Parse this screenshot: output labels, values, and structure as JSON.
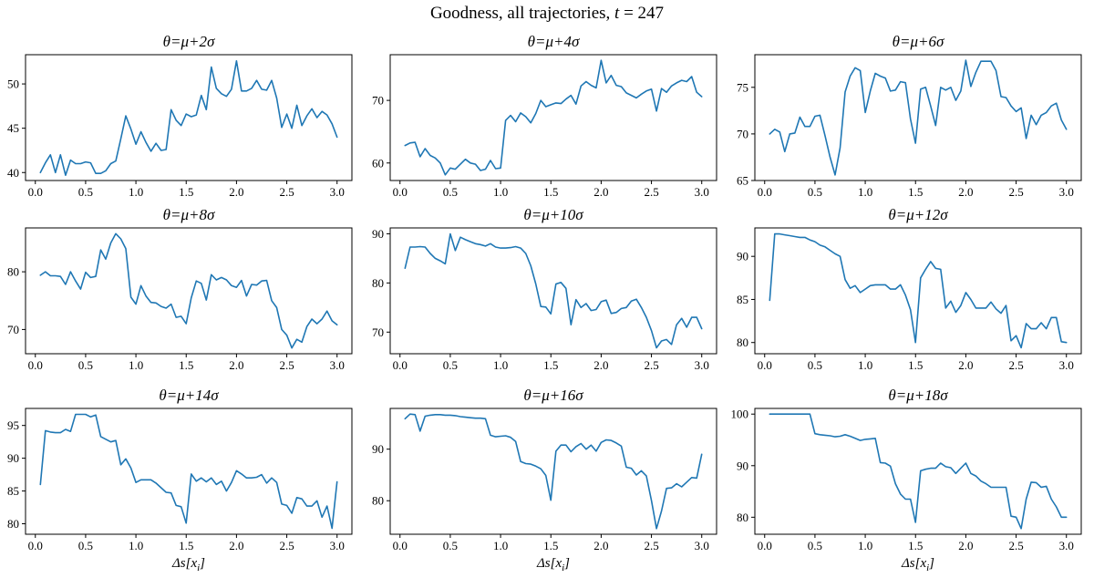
{
  "figure": {
    "title_prefix": "Goodness, all trajectories, ",
    "title_var": "t",
    "title_suffix": " = 247",
    "xlabel_pre": "Δs[x",
    "xlabel_sub": "i",
    "xlabel_post": "]",
    "line_color": "#1f77b4",
    "background": "#ffffff"
  },
  "axes": {
    "x": [
      0.05,
      0.1,
      0.15,
      0.2,
      0.25,
      0.3,
      0.35,
      0.4,
      0.45,
      0.5,
      0.55,
      0.6,
      0.65,
      0.7,
      0.75,
      0.8,
      0.85,
      0.9,
      0.95,
      1.0,
      1.05,
      1.1,
      1.15,
      1.2,
      1.25,
      1.3,
      1.35,
      1.4,
      1.45,
      1.5,
      1.55,
      1.6,
      1.65,
      1.7,
      1.75,
      1.8,
      1.85,
      1.9,
      1.95,
      2.0,
      2.05,
      2.1,
      2.15,
      2.2,
      2.25,
      2.3,
      2.35,
      2.4,
      2.45,
      2.5,
      2.55,
      2.6,
      2.65,
      2.7,
      2.75,
      2.8,
      2.85,
      2.9,
      2.95,
      3.0
    ],
    "xticks": [
      0.0,
      0.5,
      1.0,
      1.5,
      2.0,
      2.5,
      3.0
    ],
    "xlim": [
      -0.0975,
      3.1475
    ],
    "grid": false
  },
  "chart_data": [
    {
      "type": "line",
      "title": "θ=μ+2σ",
      "yticks": [
        40,
        45,
        50
      ],
      "ylim": [
        39.1,
        53.3
      ],
      "y": [
        40.0,
        41.1,
        42.0,
        40.0,
        42.0,
        39.7,
        41.4,
        41.0,
        41.0,
        41.2,
        41.1,
        39.9,
        39.9,
        40.2,
        41.0,
        41.3,
        43.8,
        46.4,
        44.9,
        43.2,
        44.6,
        43.4,
        42.4,
        43.3,
        42.5,
        42.6,
        47.1,
        45.9,
        45.3,
        46.6,
        46.3,
        46.5,
        48.7,
        47.1,
        51.9,
        49.5,
        48.9,
        48.6,
        49.4,
        52.6,
        49.2,
        49.2,
        49.5,
        50.4,
        49.4,
        49.3,
        50.4,
        48.4,
        45.1,
        46.6,
        45.0,
        47.6,
        45.3,
        46.4,
        47.2,
        46.2,
        46.9,
        46.5,
        45.5,
        44.0
      ]
    },
    {
      "type": "line",
      "title": "θ=μ+4σ",
      "yticks": [
        60,
        70
      ],
      "ylim": [
        57.2,
        77.3
      ],
      "y": [
        62.8,
        63.2,
        63.3,
        61.0,
        62.3,
        61.2,
        60.8,
        60.0,
        58.1,
        59.2,
        59.0,
        59.8,
        60.6,
        60.0,
        59.8,
        58.8,
        59.0,
        60.4,
        59.1,
        59.2,
        66.8,
        67.6,
        66.6,
        68.0,
        67.4,
        66.4,
        67.9,
        70.0,
        69.0,
        69.3,
        69.6,
        69.5,
        70.2,
        70.8,
        69.4,
        72.3,
        73.0,
        72.4,
        72.0,
        76.4,
        72.8,
        74.0,
        72.4,
        72.2,
        71.2,
        70.8,
        70.4,
        71.0,
        71.5,
        71.8,
        68.3,
        71.9,
        71.3,
        72.3,
        72.8,
        73.2,
        73.0,
        73.8,
        71.3,
        70.6
      ]
    },
    {
      "type": "line",
      "title": "θ=μ+6σ",
      "yticks": [
        65,
        70,
        75
      ],
      "ylim": [
        65.0,
        78.5
      ],
      "y": [
        70.0,
        70.5,
        70.2,
        68.1,
        70.0,
        70.1,
        71.8,
        70.8,
        70.8,
        71.9,
        72.0,
        69.8,
        67.5,
        65.6,
        68.5,
        74.5,
        76.2,
        77.1,
        76.8,
        72.3,
        74.6,
        76.5,
        76.2,
        76.0,
        74.6,
        74.7,
        75.6,
        75.5,
        71.6,
        69.0,
        74.8,
        75.0,
        73.0,
        70.9,
        75.0,
        74.7,
        75.0,
        73.6,
        74.6,
        77.9,
        75.1,
        76.6,
        77.8,
        77.8,
        77.8,
        76.8,
        74.0,
        73.9,
        73.0,
        72.4,
        72.8,
        69.5,
        72.0,
        71.0,
        72.0,
        72.3,
        73.0,
        73.3,
        71.5,
        70.5
      ]
    },
    {
      "type": "line",
      "title": "θ=μ+8σ",
      "yticks": [
        70,
        80
      ],
      "ylim": [
        65.8,
        87.6
      ],
      "y": [
        79.4,
        80.0,
        79.3,
        79.3,
        79.2,
        77.8,
        80.0,
        78.4,
        77.0,
        79.9,
        79.0,
        79.2,
        83.8,
        82.2,
        85.0,
        86.6,
        85.7,
        84.0,
        75.6,
        74.4,
        77.6,
        75.8,
        74.7,
        74.6,
        74.0,
        73.7,
        74.4,
        72.1,
        72.3,
        71.0,
        75.5,
        78.4,
        78.0,
        75.1,
        79.5,
        78.6,
        79.0,
        78.6,
        77.6,
        77.3,
        78.5,
        75.8,
        77.8,
        77.7,
        78.4,
        78.5,
        75.0,
        73.8,
        70.0,
        69.0,
        66.8,
        68.3,
        67.8,
        70.5,
        71.8,
        71.0,
        71.8,
        73.2,
        71.5,
        70.8
      ]
    },
    {
      "type": "line",
      "title": "θ=μ+10σ",
      "yticks": [
        70,
        80,
        90
      ],
      "ylim": [
        65.6,
        91.2
      ],
      "y": [
        83.0,
        87.3,
        87.3,
        87.4,
        87.3,
        86.0,
        85.0,
        84.5,
        83.9,
        90.0,
        86.6,
        89.3,
        88.8,
        88.4,
        88.0,
        87.8,
        87.5,
        88.0,
        87.3,
        87.1,
        87.1,
        87.2,
        87.4,
        87.1,
        86.0,
        83.5,
        79.8,
        75.2,
        75.1,
        73.7,
        79.8,
        80.1,
        78.9,
        71.5,
        76.6,
        75.0,
        75.8,
        74.4,
        74.6,
        76.2,
        76.5,
        73.8,
        74.0,
        74.8,
        75.0,
        76.3,
        76.7,
        75.0,
        73.0,
        70.3,
        66.8,
        68.2,
        68.5,
        67.5,
        71.5,
        72.8,
        71.0,
        73.0,
        73.0,
        70.7
      ]
    },
    {
      "type": "line",
      "title": "θ=μ+12σ",
      "yticks": [
        80,
        85,
        90
      ],
      "ylim": [
        78.7,
        93.3
      ],
      "y": [
        84.9,
        92.6,
        92.6,
        92.5,
        92.4,
        92.3,
        92.2,
        92.2,
        91.9,
        91.7,
        91.3,
        91.1,
        90.7,
        90.3,
        90.0,
        87.3,
        86.3,
        86.6,
        85.8,
        86.2,
        86.6,
        86.7,
        86.7,
        86.7,
        86.2,
        86.2,
        86.7,
        85.5,
        83.8,
        80.0,
        87.5,
        88.5,
        89.4,
        88.6,
        88.5,
        84.0,
        84.8,
        83.5,
        84.3,
        85.8,
        85.0,
        84.0,
        84.0,
        84.0,
        84.7,
        83.9,
        83.4,
        84.3,
        80.2,
        80.8,
        79.4,
        82.2,
        81.6,
        81.6,
        82.3,
        81.6,
        82.9,
        82.9,
        80.1,
        80.0
      ]
    },
    {
      "type": "line",
      "title": "θ=μ+14σ",
      "yticks": [
        80,
        85,
        90,
        95
      ],
      "ylim": [
        78.4,
        97.6
      ],
      "y": [
        86.0,
        94.2,
        94.0,
        93.9,
        93.9,
        94.4,
        94.1,
        96.7,
        96.7,
        96.7,
        96.3,
        96.6,
        93.3,
        92.9,
        92.5,
        92.7,
        89.0,
        89.9,
        88.5,
        86.3,
        86.7,
        86.7,
        86.7,
        86.2,
        85.5,
        84.8,
        84.7,
        82.8,
        82.6,
        80.1,
        87.6,
        86.5,
        87.0,
        86.4,
        87.0,
        86.0,
        86.5,
        85.0,
        86.3,
        88.1,
        87.6,
        87.0,
        87.0,
        87.1,
        87.5,
        86.2,
        87.0,
        86.3,
        83.0,
        82.8,
        81.6,
        84.0,
        83.8,
        82.7,
        82.7,
        83.5,
        81.0,
        82.7,
        79.3,
        86.4
      ]
    },
    {
      "type": "line",
      "title": "θ=μ+16σ",
      "yticks": [
        80,
        90
      ],
      "ylim": [
        73.5,
        97.9
      ],
      "y": [
        95.9,
        96.8,
        96.7,
        93.5,
        96.4,
        96.6,
        96.7,
        96.7,
        96.6,
        96.6,
        96.5,
        96.3,
        96.2,
        96.1,
        96.0,
        96.0,
        95.9,
        92.7,
        92.4,
        92.5,
        92.6,
        92.3,
        91.5,
        87.6,
        87.2,
        87.1,
        86.7,
        86.2,
        84.9,
        80.1,
        89.6,
        90.8,
        90.8,
        89.5,
        90.5,
        91.1,
        90.0,
        90.8,
        89.6,
        91.3,
        91.8,
        91.7,
        91.2,
        90.6,
        86.5,
        86.3,
        85.0,
        85.8,
        84.8,
        80.0,
        74.6,
        78.0,
        82.4,
        82.5,
        83.3,
        82.7,
        83.6,
        84.5,
        84.4,
        89.0
      ]
    },
    {
      "type": "line",
      "title": "θ=μ+18σ",
      "yticks": [
        80,
        90,
        100
      ],
      "ylim": [
        76.7,
        101.1
      ],
      "y": [
        100.0,
        100.0,
        100.0,
        100.0,
        100.0,
        100.0,
        100.0,
        100.0,
        100.0,
        96.2,
        96.0,
        95.9,
        95.8,
        95.6,
        95.7,
        96.0,
        95.7,
        95.3,
        94.9,
        95.1,
        95.2,
        95.3,
        90.6,
        90.5,
        89.9,
        86.5,
        84.5,
        83.5,
        83.5,
        79.0,
        89.0,
        89.3,
        89.5,
        89.5,
        90.5,
        89.8,
        89.6,
        88.5,
        89.5,
        90.5,
        88.5,
        88.0,
        87.0,
        86.5,
        85.8,
        85.8,
        85.8,
        85.8,
        80.2,
        80.0,
        77.8,
        83.5,
        86.8,
        86.7,
        85.8,
        86.0,
        83.5,
        82.0,
        80.0,
        80.0
      ]
    }
  ]
}
